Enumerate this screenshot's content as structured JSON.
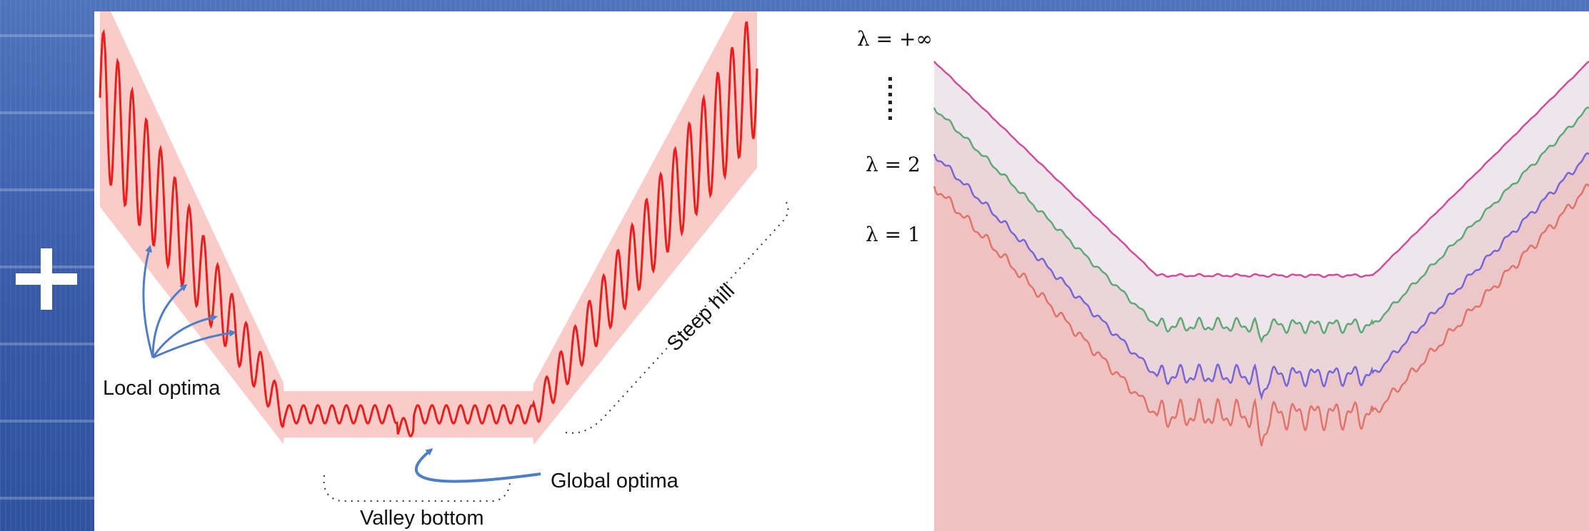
{
  "left_diagram": {
    "local_optima_label": "Local optima",
    "global_optima_label": "Global optima",
    "valley_bottom_label": "Valley bottom",
    "steep_hill_label": "Steep hill"
  },
  "right_diagram": {
    "lambda_levels": [
      {
        "label": "λ = +∞",
        "color": "#cc4f9c"
      },
      {
        "label": "λ = 2",
        "color": "#5eaa76"
      },
      {
        "label": "λ = 1",
        "color": "#7766d6"
      }
    ],
    "extra_curve_color": "#e0746a"
  },
  "colors": {
    "curve": "#e8201d",
    "band": "#f8c2c0",
    "arrow": "#4f7ec6",
    "background_blue": "#3d64b4"
  }
}
